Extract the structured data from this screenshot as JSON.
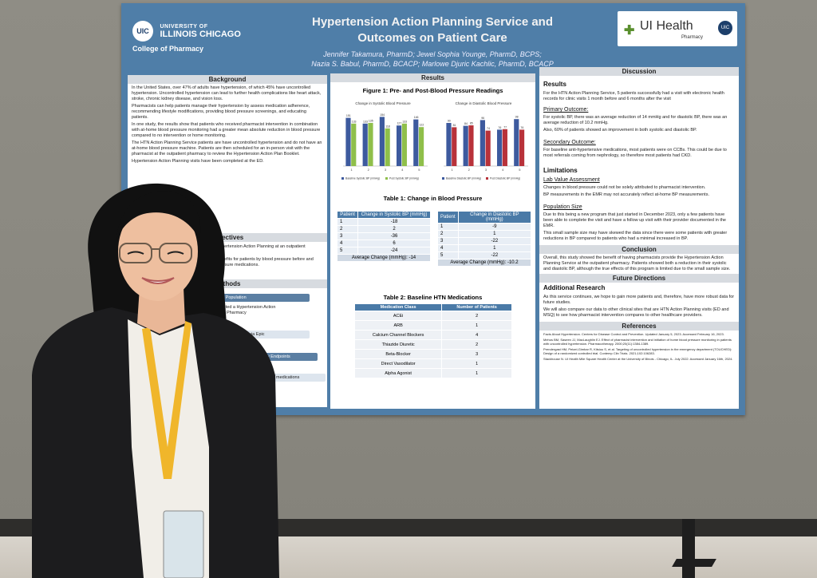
{
  "poster": {
    "university_line1": "UNIVERSITY OF",
    "university_line2": "ILLINOIS CHICAGO",
    "uic_mark": "UIC",
    "college": "College of Pharmacy",
    "title_line1": "Hypertension Action Planning Service and",
    "title_line2": "Outcomes on Patient Care",
    "authors_line1": "Jennifer Takamura, PharmD; Jewel Sophia Younge, PharmD, BCPS;",
    "authors_line2": "Nazia S. Babul, PharmD, BCACP; Marlowe Djuric Kachlic, PharmD, BCACP",
    "ui_health": "UI Health",
    "ui_health_sub": "Pharmacy",
    "background": {
      "heading": "Background",
      "bullets": [
        "In the United States, over 47% of adults have hypertension, of which 45% have uncontrolled hypertension. Uncontrolled hypertension can lead to further health complications like heart attack, stroke, chronic kidney disease, and vision loss.",
        "Pharmacists can help patients manage their hypertension by assess medication adherence, recommending lifestyle modifications, providing blood pressure screenings, and educating patients.",
        "In one study, the results show that patients who received pharmacist intervention in combination with at-home blood pressure monitoring had a greater mean absolute reduction in blood pressure compared to no intervention or home monitoring.",
        "The HTN Action Planning Service patients are have uncontrolled hypertension and do not have an at-home blood pressure machine. Patients are then scheduled for an in-person visit with the pharmacist at the outpatient pharmacy to review the Hypertension Action Plan Booklet.",
        "Hypertension Action Planning visits have been completed at the ED."
      ]
    },
    "objectives": {
      "heading": "Objectives",
      "bullets": [
        "To analyze the impact of the pharmacist for Hypertension Action Planning at an outpatient pharmacy.",
        "To analyze the impact of the service and its benefits for patients by blood pressure before and after the service was conducted, as well as pressure medications."
      ]
    },
    "methods": {
      "heading": "Methods",
      "box1": "Patient Population",
      "box2": "completed a Hypertension Action",
      "box3": "at SCB Pharmacy",
      "box4": "cords available via Epic",
      "box5": "ndary Endpoints",
      "box6": "the HTN medications"
    },
    "results_heading": "Results",
    "figure1": {
      "title": "Figure 1: Pre- and Post-Blood Pressure Readings",
      "left_title": "Change in Systolic Blood Pressure",
      "right_title": "Change in Diastolic Blood Pressure",
      "left_legend": [
        "Baseline Systolic BP (mmHg)",
        "Post Systolic BP (mmHg)"
      ],
      "right_legend": [
        "Baseline Diastolic BP (mmHg)",
        "Post Diastolic BP (mmHg)"
      ]
    },
    "table1": {
      "title": "Table 1: Change in Blood Pressure",
      "sys_headers": [
        "Patient",
        "Change in Systolic BP (mmHg)"
      ],
      "dia_headers": [
        "Patient",
        "Change in Diastolic BP (mmHg)"
      ],
      "sys_rows": [
        [
          "1",
          "-18"
        ],
        [
          "2",
          "2"
        ],
        [
          "3",
          "-36"
        ],
        [
          "4",
          "6"
        ],
        [
          "5",
          "-24"
        ]
      ],
      "dia_rows": [
        [
          "1",
          "-9"
        ],
        [
          "2",
          "1"
        ],
        [
          "3",
          "-22"
        ],
        [
          "4",
          "1"
        ],
        [
          "5",
          "-22"
        ]
      ],
      "sys_avg": "Average Change (mmHg): -14",
      "dia_avg": "Average Change (mmHg): -10.2"
    },
    "table2": {
      "title": "Table 2: Baseline HTN Medications",
      "headers": [
        "Medication Class",
        "Number of Patients"
      ],
      "rows": [
        [
          "ACEi",
          "2"
        ],
        [
          "ARB",
          "1"
        ],
        [
          "Calcium Channel Blockers",
          "4"
        ],
        [
          "Thiazide Diuretic",
          "2"
        ],
        [
          "Beta-Blocker",
          "3"
        ],
        [
          "Direct Vasodilator",
          "1"
        ],
        [
          "Alpha Agonist",
          "1"
        ]
      ]
    },
    "discussion": {
      "heading": "Discussion",
      "results_label": "Results",
      "results_text": "For the HTN Action Planning Service, 5 patients successfully had a visit with electronic health records for clinic visits 1 month before and 6 months after the visit",
      "primary_label": "Primary Outcome:",
      "primary_bullets": [
        "For systolic BP, there was an average reduction of 14 mmHg and for diastolic BP, there was an average reduction of 10.2 mmHg.",
        "Also, 60% of patients showed an improvement in both systolic and diastolic BP."
      ],
      "secondary_label": "Secondary Outcome:",
      "secondary_bullets": [
        "For baseline anti-hypertensive medications, most patients were on CCBs. This could be due to most referrals coming from nephrology, so therefore most patients had CKD."
      ],
      "limitations_label": "Limitations",
      "lab_label": "Lab Value Assessment",
      "lab_bullets": [
        "Changes in blood pressure could not be solely attributed to pharmacist intervention.",
        "BP measurements in the EMR may not accurately reflect at-home BP measurements."
      ],
      "pop_label": "Population Size",
      "pop_bullets": [
        "Due to this being a new program that just started in December 2023, only a few patients have been able to complete the visit and have a follow up visit with their provider documented in the EMR.",
        "This small sample size may have skewed the data since there were some patients with greater reductions in BP compared to patients who had a minimal increased in BP."
      ]
    },
    "conclusion": {
      "heading": "Conclusion",
      "text": "Overall, this study showed the benefit of having pharmacists provide the Hypertension Action Planning Service at the outpatient pharmacy. Patients showed both a reduction in their systolic and diastolic BP, although the true effects of this program is limited due to the small sample size."
    },
    "future": {
      "heading": "Future Directions",
      "sub": "Additional Research",
      "bullets": [
        "As this service continues, we hope to gain more patients and, therefore, have more robust data for future studies.",
        "We will also compare our data to other clinical sites that are HTN Action Planning visits (ED and MSQ) to see how pharmacist intervention compares to other healthcare providers."
      ]
    },
    "references": {
      "heading": "References",
      "items": [
        "Facts About Hypertension. Centers for Disease Control and Prevention. Updated January 5, 2023. Accessed February 16, 2023.",
        "Mehos BM, Saseen JJ, MacLaughlin EJ. Effect of pharmacist intervention and initiation of home blood pressure monitoring in patients with uncontrolled hypertension. Pharmacotherapy. 2000;20(11):1384-1389.",
        "Prendergast HM, Petzel-Gimbar R, Kitsiou S, et al. Targeting of uncontrolled hypertension in the emergency department (TOUCHED): Design of a randomized controlled trial. Contemp Clin Trials. 2021;102:106283.",
        "Stackhouse N. UI Health Mile Square Health Center at the University of Illinois - Chicago, IL. July 2022. Accessed January 16th, 2024."
      ]
    }
  },
  "chart_data": [
    {
      "type": "bar",
      "title": "Change in Systolic Blood Pressure",
      "categories": [
        "1",
        "2",
        "3",
        "4",
        "5"
      ],
      "series": [
        {
          "name": "Baseline Systolic BP (mmHg)",
          "values": [
            151,
            133,
            154,
            127,
            146
          ]
        },
        {
          "name": "Post Systolic BP (mmHg)",
          "values": [
            133,
            135,
            118,
            133,
            122
          ]
        }
      ],
      "ylim": [
        0,
        180
      ],
      "colors": [
        "#3d5a9e",
        "#8fbf4a"
      ]
    },
    {
      "type": "bar",
      "title": "Change in Diastolic Blood Pressure",
      "categories": [
        "1",
        "2",
        "3",
        "4",
        "5"
      ],
      "series": [
        {
          "name": "Baseline Diastolic BP (mmHg)",
          "values": [
            90,
            84,
            96,
            76,
            98
          ]
        },
        {
          "name": "Post Diastolic BP (mmHg)",
          "values": [
            81,
            85,
            74,
            77,
            76
          ]
        }
      ],
      "ylim": [
        0,
        120
      ],
      "colors": [
        "#3d5a9e",
        "#b8323a"
      ]
    }
  ]
}
